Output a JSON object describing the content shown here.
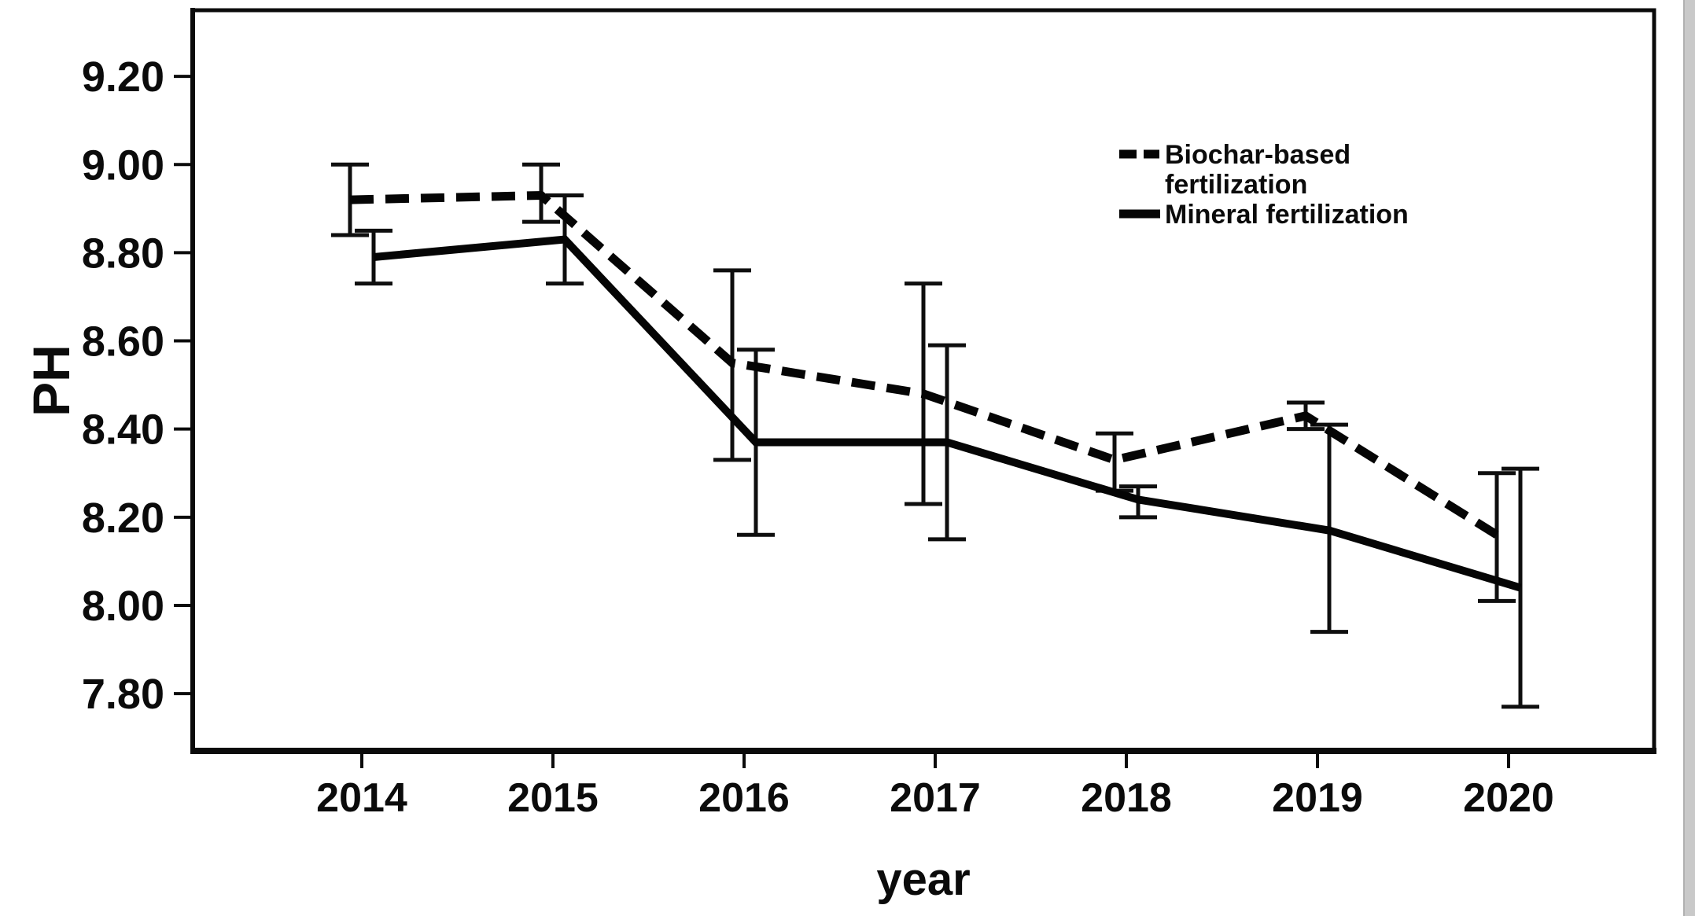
{
  "figure": {
    "background": "#ffffff",
    "line_color": "#000000",
    "right_edge_strip_color": "#c9c9c9"
  },
  "chart_data": {
    "type": "line",
    "title": "",
    "xlabel": "year",
    "ylabel": "PH",
    "x_categories": [
      "2014",
      "2015",
      "2016",
      "2017",
      "2018",
      "2019",
      "2020"
    ],
    "y_ticks": [
      "9.20",
      "9.00",
      "8.80",
      "8.60",
      "8.40",
      "8.20",
      "8.00",
      "7.80"
    ],
    "ylim": [
      7.67,
      9.35
    ],
    "grid": false,
    "legend_position": "top-right-inside",
    "error_bars": true,
    "series": [
      {
        "name": "Biochar-based fertilization",
        "legend_label_lines": [
          "Biochar-based",
          "fertilization"
        ],
        "line_style": "dashed",
        "color": "#000000",
        "values": [
          8.92,
          8.93,
          8.55,
          8.48,
          8.33,
          8.43,
          8.16
        ],
        "error_low": [
          8.84,
          8.87,
          8.33,
          8.23,
          8.26,
          8.4,
          8.01
        ],
        "error_high": [
          9.0,
          9.0,
          8.76,
          8.73,
          8.39,
          8.46,
          8.3
        ]
      },
      {
        "name": "Mineral fertilization",
        "legend_label_lines": [
          "Mineral fertilization"
        ],
        "line_style": "solid",
        "color": "#000000",
        "values": [
          8.79,
          8.83,
          8.37,
          8.37,
          8.24,
          8.17,
          8.04
        ],
        "error_low": [
          8.73,
          8.73,
          8.16,
          8.15,
          8.2,
          7.94,
          7.77
        ],
        "error_high": [
          8.85,
          8.93,
          8.58,
          8.59,
          8.27,
          8.41,
          8.31
        ]
      }
    ]
  }
}
